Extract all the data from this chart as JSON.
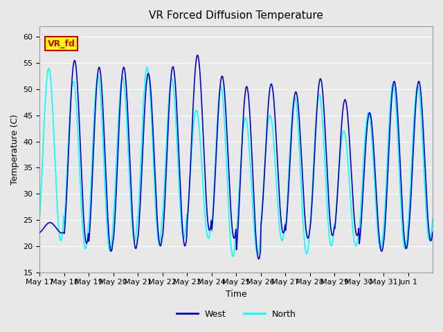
{
  "title": "VR Forced Diffusion Temperature",
  "xlabel": "Time",
  "ylabel": "Temperature (C)",
  "ylim": [
    15,
    62
  ],
  "yticks": [
    15,
    20,
    25,
    30,
    35,
    40,
    45,
    50,
    55,
    60
  ],
  "west_color": "#0000CD",
  "north_color": "#00FFFF",
  "background_color": "#E8E8E8",
  "annotation_text": "VR_fd",
  "annotation_bg": "#FFFF00",
  "annotation_fg": "#CC0000",
  "legend_west_label": "West",
  "legend_north_label": "North",
  "x_tick_labels": [
    "May 17",
    "May 18",
    "May 19",
    "May 20",
    "May 21",
    "May 22",
    "May 23",
    "May 24",
    "May 25",
    "May 26",
    "May 27",
    "May 28",
    "May 29",
    "May 30",
    "May 31",
    "Jun 1"
  ],
  "west_peaks": [
    24.5,
    55.5,
    54.2,
    54.2,
    53.0,
    54.3,
    56.5,
    52.5,
    50.5,
    51.0,
    49.5,
    52.0,
    48.0,
    45.5,
    51.5,
    51.5
  ],
  "west_troughs": [
    22.5,
    20.5,
    19.0,
    19.5,
    20.0,
    20.0,
    23.0,
    21.5,
    17.5,
    22.5,
    21.5,
    22.0,
    22.0,
    19.0,
    19.5,
    21.0
  ],
  "north_peaks": [
    54.0,
    51.5,
    52.5,
    52.3,
    54.2,
    52.0,
    46.0,
    50.5,
    44.5,
    45.0,
    48.5,
    49.0,
    42.0,
    45.5,
    51.0,
    50.5
  ],
  "north_troughs": [
    21.0,
    19.5,
    19.0,
    21.0,
    20.5,
    21.5,
    21.5,
    18.0,
    18.5,
    21.0,
    18.5,
    20.0,
    20.0,
    19.5,
    19.5,
    21.0
  ]
}
